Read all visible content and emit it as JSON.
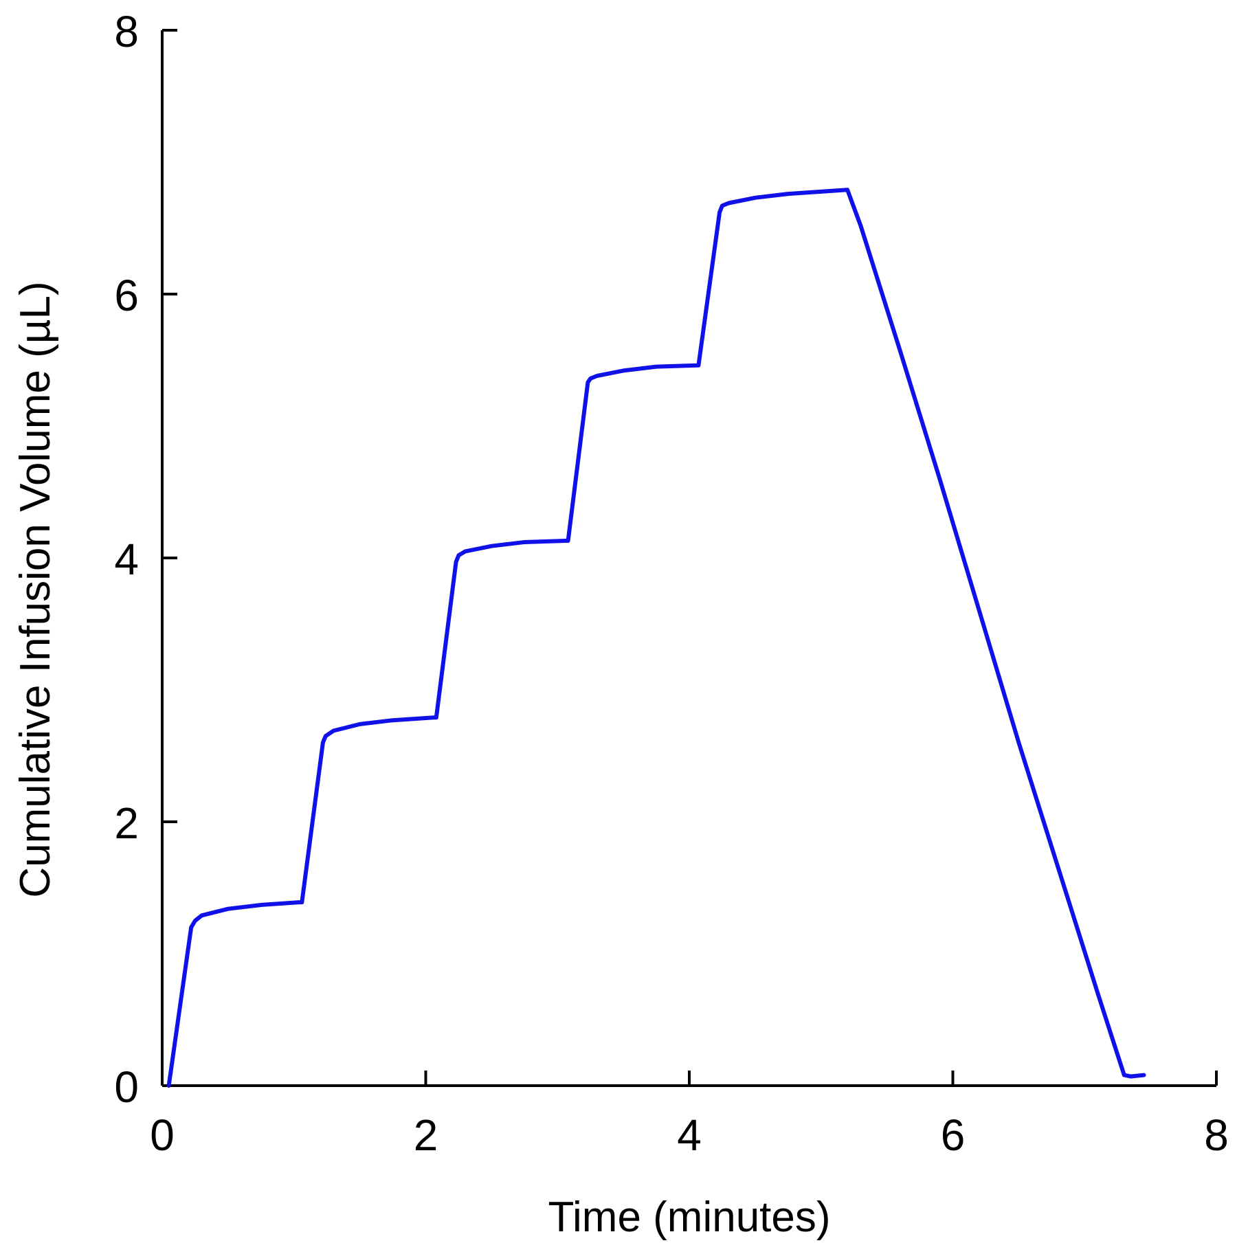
{
  "chart_data": {
    "type": "line",
    "title": "",
    "xlabel": "Time (minutes)",
    "ylabel": "Cumulative Infusion Volume (µL)",
    "xlim": [
      0,
      8
    ],
    "ylim": [
      0,
      8
    ],
    "xticks": [
      0,
      2,
      4,
      6,
      8
    ],
    "yticks": [
      0,
      2,
      4,
      6,
      8
    ],
    "xtick_labels": [
      "0",
      "2",
      "4",
      "6",
      "8"
    ],
    "ytick_labels": [
      "0",
      "2",
      "4",
      "6",
      "8"
    ],
    "grid": false,
    "legend": "none",
    "series": [
      {
        "color": "#1010e8",
        "x": [
          0.05,
          0.22,
          0.25,
          0.3,
          0.5,
          0.75,
          1.04,
          1.06,
          1.22,
          1.24,
          1.3,
          1.5,
          1.75,
          2.06,
          2.08,
          2.23,
          2.25,
          2.3,
          2.5,
          2.75,
          3.06,
          3.08,
          3.23,
          3.25,
          3.3,
          3.5,
          3.75,
          4.06,
          4.07,
          4.23,
          4.25,
          4.3,
          4.5,
          4.75,
          5.2,
          5.3,
          5.6,
          5.9,
          6.2,
          6.5,
          6.8,
          7.1,
          7.3,
          7.35,
          7.45
        ],
        "y": [
          0.0,
          1.2,
          1.25,
          1.29,
          1.34,
          1.37,
          1.39,
          1.39,
          2.6,
          2.65,
          2.69,
          2.74,
          2.77,
          2.79,
          2.79,
          3.97,
          4.02,
          4.05,
          4.09,
          4.12,
          4.13,
          4.13,
          5.33,
          5.36,
          5.38,
          5.42,
          5.45,
          5.46,
          5.46,
          6.62,
          6.67,
          6.69,
          6.73,
          6.76,
          6.79,
          6.52,
          5.57,
          4.6,
          3.6,
          2.6,
          1.65,
          0.7,
          0.08,
          0.07,
          0.08
        ]
      }
    ]
  }
}
